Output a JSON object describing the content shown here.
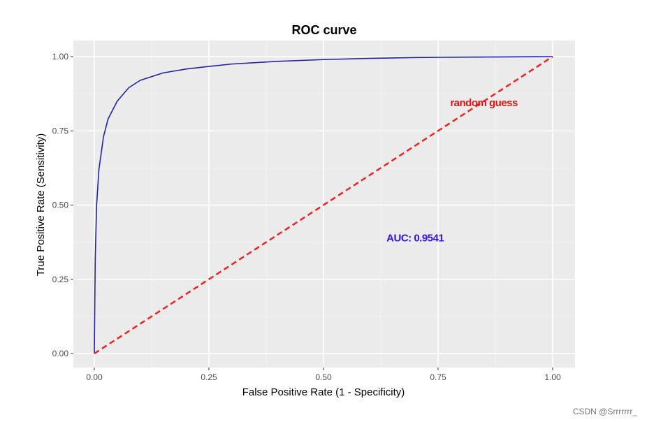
{
  "chart_data": {
    "type": "line",
    "title": "ROC curve",
    "xlabel": "False Positive Rate (1 - Specificity)",
    "ylabel": "True Positive Rate (Sensitivity)",
    "xlim": [
      0,
      1
    ],
    "ylim": [
      0,
      1
    ],
    "x_ticks": [
      "0.00",
      "0.25",
      "0.50",
      "0.75",
      "1.00"
    ],
    "y_ticks": [
      "0.00",
      "0.25",
      "0.50",
      "0.75",
      "1.00"
    ],
    "grid": true,
    "series": [
      {
        "color": "#2222aa",
        "style": "solid",
        "x": [
          0,
          0.002,
          0.005,
          0.01,
          0.02,
          0.03,
          0.05,
          0.075,
          0.1,
          0.15,
          0.2,
          0.25,
          0.3,
          0.4,
          0.5,
          0.6,
          0.7,
          0.8,
          0.9,
          1.0
        ],
        "y": [
          0,
          0.32,
          0.5,
          0.62,
          0.73,
          0.79,
          0.85,
          0.895,
          0.92,
          0.945,
          0.958,
          0.967,
          0.975,
          0.984,
          0.99,
          0.994,
          0.997,
          0.998,
          0.999,
          1.0
        ]
      },
      {
        "color": "#ee2222",
        "style": "dashed",
        "x": [
          0,
          1
        ],
        "y": [
          0,
          1
        ]
      }
    ],
    "annotations": [
      {
        "text": "random guess",
        "x": 0.85,
        "y": 0.845,
        "color": "#ee1111"
      },
      {
        "text": "AUC:  0.9541",
        "x": 0.7,
        "y": 0.39,
        "color": "#3311ee"
      }
    ]
  },
  "watermark": "CSDN @Srrrrrrr_"
}
